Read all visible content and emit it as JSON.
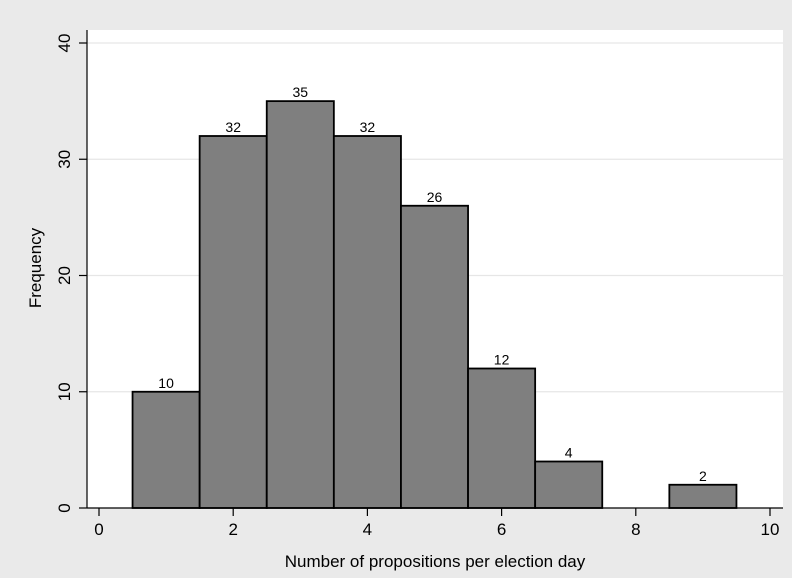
{
  "chart_data": {
    "type": "bar",
    "title": "",
    "xlabel": "Number of propositions per election day",
    "ylabel": "Frequency",
    "xlim": [
      0,
      10
    ],
    "ylim": [
      0,
      40
    ],
    "xticks": [
      0,
      2,
      4,
      6,
      8,
      10
    ],
    "yticks": [
      0,
      10,
      20,
      30,
      40
    ],
    "grid": "horizontal",
    "bar_width": 1,
    "bars": [
      {
        "x": 1,
        "value": 10
      },
      {
        "x": 2,
        "value": 32
      },
      {
        "x": 3,
        "value": 35
      },
      {
        "x": 4,
        "value": 32
      },
      {
        "x": 5,
        "value": 26
      },
      {
        "x": 6,
        "value": 12
      },
      {
        "x": 7,
        "value": 4
      },
      {
        "x": 9,
        "value": 2
      }
    ],
    "colors": {
      "background": "#eaeaea",
      "plot_background": "#ffffff",
      "bar_fill": "#7f7f7f",
      "bar_stroke": "#000000",
      "grid": "#e6e6e6",
      "axis": "#000000"
    }
  }
}
